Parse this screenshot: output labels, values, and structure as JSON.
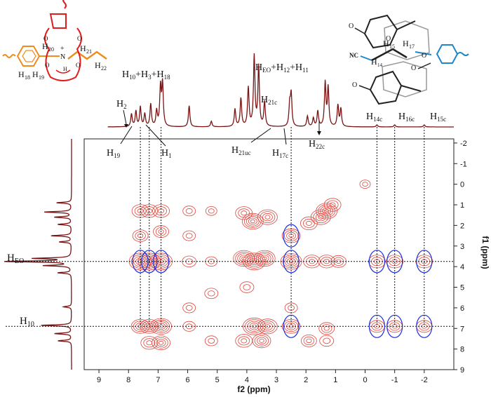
{
  "chart_data": {
    "type": "heatmap",
    "x_axis": {
      "label": "f2 (ppm)",
      "range": [
        9.5,
        -3.0
      ],
      "reversed": true,
      "ticks": [
        "9",
        "8",
        "7",
        "6",
        "5",
        "4",
        "3",
        "2",
        "1",
        "0",
        "-1",
        "-2"
      ]
    },
    "y_axis": {
      "label": "f1 (ppm)",
      "range": [
        -2.2,
        9.0
      ],
      "reversed": true,
      "ticks": [
        "-2",
        "-1",
        "0",
        "1",
        "2",
        "3",
        "4",
        "5",
        "6",
        "7",
        "8",
        "9"
      ]
    },
    "top_spectrum_peaks": [
      {
        "ppm": 7.9,
        "height": 0.18
      },
      {
        "ppm": 7.75,
        "height": 0.22
      },
      {
        "ppm": 7.6,
        "height": 0.28
      },
      {
        "ppm": 7.45,
        "height": 0.18
      },
      {
        "ppm": 7.25,
        "height": 0.32
      },
      {
        "ppm": 7.05,
        "height": 0.22
      },
      {
        "ppm": 6.92,
        "height": 0.55
      },
      {
        "ppm": 6.85,
        "height": 0.6
      },
      {
        "ppm": 5.95,
        "height": 0.3
      },
      {
        "ppm": 5.2,
        "height": 0.08
      },
      {
        "ppm": 4.4,
        "height": 0.25
      },
      {
        "ppm": 4.2,
        "height": 0.4
      },
      {
        "ppm": 3.95,
        "height": 0.55
      },
      {
        "ppm": 3.75,
        "height": 1.0
      },
      {
        "ppm": 3.6,
        "height": 0.85
      },
      {
        "ppm": 3.4,
        "height": 0.35
      },
      {
        "ppm": 2.55,
        "height": 0.3
      },
      {
        "ppm": 2.5,
        "height": 0.45
      },
      {
        "ppm": 1.95,
        "height": 0.15
      },
      {
        "ppm": 1.75,
        "height": 0.12
      },
      {
        "ppm": 1.6,
        "height": 0.22
      },
      {
        "ppm": 1.35,
        "height": 0.62
      },
      {
        "ppm": 1.25,
        "height": 0.55
      },
      {
        "ppm": 0.92,
        "height": 0.3
      },
      {
        "ppm": 0.82,
        "height": 0.25
      },
      {
        "ppm": -0.4,
        "height": 0.03
      },
      {
        "ppm": -1.0,
        "height": 0.03
      },
      {
        "ppm": -2.0,
        "height": 0.03
      }
    ],
    "left_spectrum_peaks": [
      {
        "ppm": 3.75,
        "height": 1.0
      },
      {
        "ppm": 3.6,
        "height": 0.55
      },
      {
        "ppm": 3.95,
        "height": 0.4
      },
      {
        "ppm": 6.85,
        "height": 0.45
      },
      {
        "ppm": 7.25,
        "height": 0.25
      },
      {
        "ppm": 7.6,
        "height": 0.2
      },
      {
        "ppm": 1.35,
        "height": 0.4
      },
      {
        "ppm": 1.6,
        "height": 0.25
      },
      {
        "ppm": 2.5,
        "height": 0.3
      },
      {
        "ppm": 0.9,
        "height": 0.22
      },
      {
        "ppm": 4.3,
        "height": 0.2
      },
      {
        "ppm": 5.95,
        "height": 0.12
      },
      {
        "ppm": 1.95,
        "height": 0.2
      },
      {
        "ppm": 2.8,
        "height": 0.18
      }
    ],
    "cross_peaks": [
      {
        "x": 7.6,
        "y": 3.75,
        "size": 1.0
      },
      {
        "x": 7.3,
        "y": 3.75,
        "size": 1.0
      },
      {
        "x": 6.9,
        "y": 3.75,
        "size": 1.0
      },
      {
        "x": 7.6,
        "y": 1.3,
        "size": 0.6
      },
      {
        "x": 7.3,
        "y": 1.3,
        "size": 0.6
      },
      {
        "x": 6.9,
        "y": 1.3,
        "size": 0.6
      },
      {
        "x": 7.6,
        "y": 2.5,
        "size": 0.5
      },
      {
        "x": 6.9,
        "y": 2.3,
        "size": 0.5
      },
      {
        "x": 7.6,
        "y": 6.9,
        "size": 0.7
      },
      {
        "x": 7.3,
        "y": 6.9,
        "size": 0.7
      },
      {
        "x": 6.9,
        "y": 6.9,
        "size": 0.9
      },
      {
        "x": 7.3,
        "y": 7.7,
        "size": 0.6
      },
      {
        "x": 6.9,
        "y": 7.7,
        "size": 0.7
      },
      {
        "x": 5.95,
        "y": 1.3,
        "size": 0.3
      },
      {
        "x": 5.95,
        "y": 2.5,
        "size": 0.3
      },
      {
        "x": 5.95,
        "y": 3.75,
        "size": 0.4
      },
      {
        "x": 5.95,
        "y": 6.0,
        "size": 0.3
      },
      {
        "x": 5.95,
        "y": 6.9,
        "size": 0.3
      },
      {
        "x": 5.2,
        "y": 1.3,
        "size": 0.2
      },
      {
        "x": 5.2,
        "y": 3.75,
        "size": 0.25
      },
      {
        "x": 5.2,
        "y": 5.3,
        "size": 0.35
      },
      {
        "x": 5.2,
        "y": 7.6,
        "size": 0.3
      },
      {
        "x": 3.75,
        "y": 3.75,
        "size": 1.0
      },
      {
        "x": 4.1,
        "y": 3.6,
        "size": 0.9
      },
      {
        "x": 3.4,
        "y": 3.6,
        "size": 0.9
      },
      {
        "x": 3.8,
        "y": 1.8,
        "size": 0.9
      },
      {
        "x": 3.3,
        "y": 1.6,
        "size": 0.8
      },
      {
        "x": 4.1,
        "y": 1.4,
        "size": 0.6
      },
      {
        "x": 3.75,
        "y": 6.9,
        "size": 1.0
      },
      {
        "x": 3.3,
        "y": 6.9,
        "size": 0.8
      },
      {
        "x": 4.1,
        "y": 7.6,
        "size": 0.6
      },
      {
        "x": 3.5,
        "y": 7.6,
        "size": 0.7
      },
      {
        "x": 4.0,
        "y": 5.0,
        "size": 0.4
      },
      {
        "x": 2.5,
        "y": 2.5,
        "size": 0.7
      },
      {
        "x": 2.5,
        "y": 3.75,
        "size": 0.9
      },
      {
        "x": 2.5,
        "y": 6.9,
        "size": 0.7
      },
      {
        "x": 2.5,
        "y": 6.0,
        "size": 0.3
      },
      {
        "x": 1.9,
        "y": 1.9,
        "size": 0.6
      },
      {
        "x": 1.5,
        "y": 1.6,
        "size": 0.8
      },
      {
        "x": 1.3,
        "y": 1.3,
        "size": 0.9
      },
      {
        "x": 1.1,
        "y": 1.0,
        "size": 0.6
      },
      {
        "x": 1.8,
        "y": 3.75,
        "size": 0.6
      },
      {
        "x": 1.3,
        "y": 3.75,
        "size": 0.6
      },
      {
        "x": 0.9,
        "y": 3.75,
        "size": 0.5
      },
      {
        "x": 1.3,
        "y": 7.0,
        "size": 0.5
      },
      {
        "x": 1.9,
        "y": 7.6,
        "size": 0.5
      },
      {
        "x": 1.3,
        "y": 7.6,
        "size": 0.4
      },
      {
        "x": 0.0,
        "y": 0.0,
        "size": 0.15
      },
      {
        "x": -0.4,
        "y": 3.75,
        "size": 0.6
      },
      {
        "x": -1.0,
        "y": 3.75,
        "size": 0.6
      },
      {
        "x": -2.0,
        "y": 3.75,
        "size": 0.6
      },
      {
        "x": -0.4,
        "y": 6.9,
        "size": 0.5
      },
      {
        "x": -1.0,
        "y": 6.9,
        "size": 0.5
      },
      {
        "x": -2.0,
        "y": 6.9,
        "size": 0.5
      }
    ],
    "circled_peaks": [
      {
        "x": 7.6,
        "y": 3.75
      },
      {
        "x": 7.3,
        "y": 3.75
      },
      {
        "x": 6.9,
        "y": 3.75
      },
      {
        "x": 2.5,
        "y": 2.5
      },
      {
        "x": 2.5,
        "y": 3.75
      },
      {
        "x": 2.5,
        "y": 6.9
      },
      {
        "x": -0.4,
        "y": 3.75
      },
      {
        "x": -1.0,
        "y": 3.75
      },
      {
        "x": -2.0,
        "y": 3.75
      },
      {
        "x": -0.4,
        "y": 6.9
      },
      {
        "x": -1.0,
        "y": 6.9
      },
      {
        "x": -2.0,
        "y": 6.9
      }
    ],
    "horizontal_guides": [
      {
        "ppm": 3.75,
        "label": "H_EO"
      },
      {
        "ppm": 6.9,
        "label": "H_10"
      }
    ],
    "vertical_guides": [
      7.6,
      7.3,
      6.9,
      2.5,
      -0.4,
      -1.0,
      -2.0
    ],
    "annotations": [
      {
        "text": "H10+H3+H18"
      },
      {
        "text": "H2"
      },
      {
        "text": "H19"
      },
      {
        "text": "H1"
      },
      {
        "text": "HEO+H12+H11"
      },
      {
        "text": "H21c"
      },
      {
        "text": "H21uc"
      },
      {
        "text": "H17c"
      },
      {
        "text": "H22c"
      },
      {
        "text": "H14c"
      },
      {
        "text": "H16c"
      },
      {
        "text": "H15c"
      }
    ],
    "colors": {
      "spectrum": "#7a1414",
      "contour": "#e0453c",
      "circle": "#1f2fe0",
      "orange": "#f08c1e",
      "blue": "#1e88c8",
      "red": "#e01b1b"
    }
  }
}
